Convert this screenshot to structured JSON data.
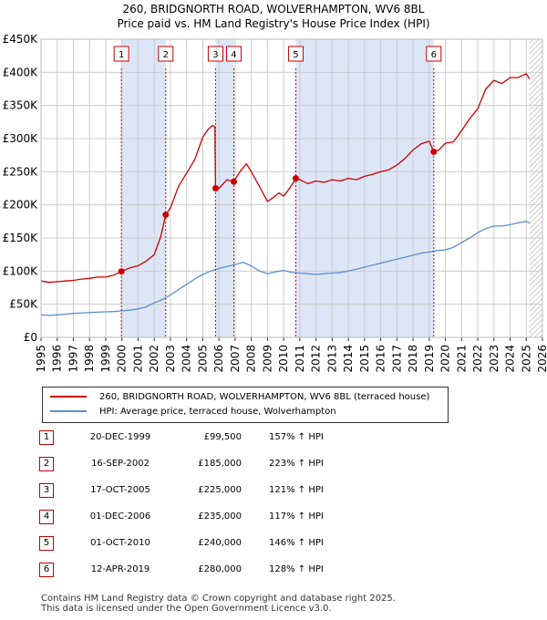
{
  "title_line1": "260, BRIDGNORTH ROAD, WOLVERHAMPTON, WV6 8BL",
  "title_line2": "Price paid vs. HM Land Registry's House Price Index (HPI)",
  "colors": {
    "property": "#cc0000",
    "hpi": "#5b8fd0",
    "shade": "#dde6f7",
    "grid": "#cccccc",
    "marker_line": "#cc0000"
  },
  "chart_data": {
    "type": "line",
    "title": "260, BRIDGNORTH ROAD, WOLVERHAMPTON, WV6 8BL — Price paid vs. HM Land Registry's House Price Index (HPI)",
    "xlabel": "",
    "ylabel": "",
    "xlim": [
      1995,
      2026
    ],
    "ylim": [
      0,
      450000
    ],
    "y_ticks": [
      0,
      50000,
      100000,
      150000,
      200000,
      250000,
      300000,
      350000,
      400000,
      450000
    ],
    "y_tick_labels": [
      "£0",
      "£50K",
      "£100K",
      "£150K",
      "£200K",
      "£250K",
      "£300K",
      "£350K",
      "£400K",
      "£450K"
    ],
    "x_ticks": [
      1995,
      1996,
      1997,
      1998,
      1999,
      2000,
      2001,
      2002,
      2003,
      2004,
      2005,
      2006,
      2007,
      2008,
      2009,
      2010,
      2011,
      2012,
      2013,
      2014,
      2015,
      2016,
      2017,
      2018,
      2019,
      2020,
      2021,
      2022,
      2023,
      2024,
      2025,
      2026
    ],
    "x_tick_labels": [
      "1995",
      "1996",
      "1997",
      "1998",
      "1999",
      "2000",
      "2001",
      "2002",
      "2003",
      "2004",
      "2005",
      "2006",
      "2007",
      "2008",
      "2009",
      "2010",
      "2011",
      "2012",
      "2013",
      "2014",
      "2015",
      "2016",
      "2017",
      "2018",
      "2019",
      "2020",
      "2021",
      "2022",
      "2023",
      "2024",
      "2025",
      "2026"
    ],
    "grid": true,
    "shaded_spans": [
      [
        1999.97,
        2002.71
      ],
      [
        2005.79,
        2006.92
      ],
      [
        2010.75,
        2019.28
      ]
    ],
    "hatched_from": 2025.2,
    "series": [
      {
        "name": "260, BRIDGNORTH ROAD, WOLVERHAMPTON, WV6 8BL (terraced house)",
        "x": [
          1995,
          1995.5,
          1996,
          1996.5,
          1997,
          1997.5,
          1998,
          1998.5,
          1999,
          1999.5,
          1999.97,
          2000.5,
          2001,
          2001.5,
          2002,
          2002.4,
          2002.71,
          2003,
          2003.5,
          2004,
          2004.5,
          2005,
          2005.3,
          2005.6,
          2005.75,
          2005.79,
          2006,
          2006.5,
          2006.92,
          2007.3,
          2007.7,
          2008,
          2008.5,
          2009,
          2009.3,
          2009.7,
          2010,
          2010.4,
          2010.75,
          2011,
          2011.5,
          2012,
          2012.5,
          2013,
          2013.5,
          2014,
          2014.5,
          2015,
          2015.5,
          2016,
          2016.5,
          2017,
          2017.5,
          2018,
          2018.5,
          2019,
          2019.28,
          2019.6,
          2020,
          2020.5,
          2021,
          2021.5,
          2022,
          2022.5,
          2023,
          2023.5,
          2024,
          2024.5,
          2025,
          2025.2
        ],
        "values": [
          85000,
          83000,
          84000,
          85000,
          86000,
          88000,
          89000,
          91000,
          91000,
          94000,
          99500,
          105000,
          108000,
          115000,
          125000,
          152000,
          185000,
          195000,
          228000,
          248000,
          268000,
          302000,
          313000,
          320000,
          318000,
          225000,
          225000,
          238000,
          235000,
          250000,
          262000,
          250000,
          228000,
          205000,
          210000,
          218000,
          213000,
          226000,
          240000,
          238000,
          232000,
          236000,
          234000,
          238000,
          236000,
          240000,
          238000,
          243000,
          246000,
          250000,
          253000,
          260000,
          270000,
          283000,
          292000,
          296000,
          280000,
          283000,
          293000,
          295000,
          312000,
          330000,
          345000,
          375000,
          388000,
          383000,
          392000,
          392000,
          398000,
          390000
        ]
      },
      {
        "name": "HPI: Average price, terraced house, Wolverhampton",
        "x": [
          1995,
          1995.5,
          1996,
          1996.5,
          1997,
          1997.5,
          1998,
          1998.5,
          1999,
          1999.5,
          2000,
          2000.5,
          2001,
          2001.5,
          2002,
          2002.5,
          2003,
          2003.5,
          2004,
          2004.5,
          2005,
          2005.5,
          2006,
          2006.5,
          2007,
          2007.5,
          2008,
          2008.5,
          2009,
          2009.5,
          2010,
          2010.5,
          2011,
          2011.5,
          2012,
          2012.5,
          2013,
          2013.5,
          2014,
          2014.5,
          2015,
          2015.5,
          2016,
          2016.5,
          2017,
          2017.5,
          2018,
          2018.5,
          2019,
          2019.5,
          2020,
          2020.5,
          2021,
          2021.5,
          2022,
          2022.5,
          2023,
          2023.5,
          2024,
          2024.5,
          2025,
          2025.2
        ],
        "values": [
          34000,
          33000,
          34000,
          35000,
          36000,
          37000,
          37500,
          38000,
          38500,
          39000,
          40000,
          41000,
          43000,
          46000,
          52000,
          57000,
          64000,
          72000,
          80000,
          88000,
          95000,
          100000,
          104000,
          107000,
          110000,
          113000,
          108000,
          100000,
          96000,
          99000,
          101000,
          98000,
          97000,
          96000,
          95000,
          96000,
          97000,
          98000,
          100000,
          103000,
          106000,
          109000,
          112000,
          115000,
          118000,
          121000,
          124000,
          127000,
          129000,
          131000,
          132000,
          136000,
          143000,
          150000,
          158000,
          164000,
          168000,
          168000,
          170000,
          173000,
          175000,
          172000
        ]
      }
    ],
    "sales": [
      {
        "num": "1",
        "date": "20-DEC-1999",
        "x": 1999.97,
        "price": 99500,
        "price_label": "£99,500",
        "hpi_label": "157% ↑ HPI"
      },
      {
        "num": "2",
        "date": "16-SEP-2002",
        "x": 2002.71,
        "price": 185000,
        "price_label": "£185,000",
        "hpi_label": "223% ↑ HPI"
      },
      {
        "num": "3",
        "date": "17-OCT-2005",
        "x": 2005.79,
        "price": 225000,
        "price_label": "£225,000",
        "hpi_label": "121% ↑ HPI"
      },
      {
        "num": "4",
        "date": "01-DEC-2006",
        "x": 2006.92,
        "price": 235000,
        "price_label": "£235,000",
        "hpi_label": "117% ↑ HPI"
      },
      {
        "num": "5",
        "date": "01-OCT-2010",
        "x": 2010.75,
        "price": 240000,
        "price_label": "£240,000",
        "hpi_label": "146% ↑ HPI"
      },
      {
        "num": "6",
        "date": "12-APR-2019",
        "x": 2019.28,
        "price": 280000,
        "price_label": "£280,000",
        "hpi_label": "128% ↑ HPI"
      }
    ]
  },
  "legend": {
    "property_label": "260, BRIDGNORTH ROAD, WOLVERHAMPTON, WV6 8BL (terraced house)",
    "hpi_label": "HPI: Average price, terraced house, Wolverhampton"
  },
  "footer": {
    "line1": "Contains HM Land Registry data © Crown copyright and database right 2025.",
    "line2": "This data is licensed under the Open Government Licence v3.0."
  }
}
